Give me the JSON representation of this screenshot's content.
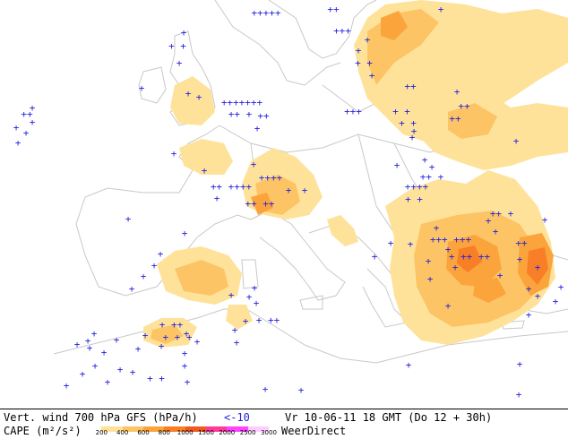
{
  "footer": {
    "line1_left": "Vert. wind 700 hPa GFS (hPa/h)",
    "vv_label": "<-10",
    "valid_time": "Vr 10-06-11 18 GMT (Do 12 + 30h)",
    "line2_left": "CAPE (m²/s²)",
    "brand": "WeerDirect"
  },
  "legend": {
    "ticks": [
      "200",
      "400",
      "600",
      "800",
      "1000",
      "1500",
      "2000",
      "2500",
      "3000"
    ],
    "colors": [
      "#ffffff",
      "#ffe29a",
      "#fdc466",
      "#fba43c",
      "#f87e28",
      "#ee5a22",
      "#ff3a9a",
      "#ff44ff",
      "#ffccff"
    ]
  },
  "map": {
    "land_color": "#ffffff",
    "sea_color": "#ffffff",
    "coast_color": "#c8c8c8",
    "cape_colors": [
      "#ffe29a",
      "#fdc466",
      "#fba43c",
      "#f87e28"
    ],
    "marker_color": "#2222dd",
    "marker_symbol": "+",
    "marker_meaning": "Vert. wind 700 hPa < -10 hPa/h"
  }
}
